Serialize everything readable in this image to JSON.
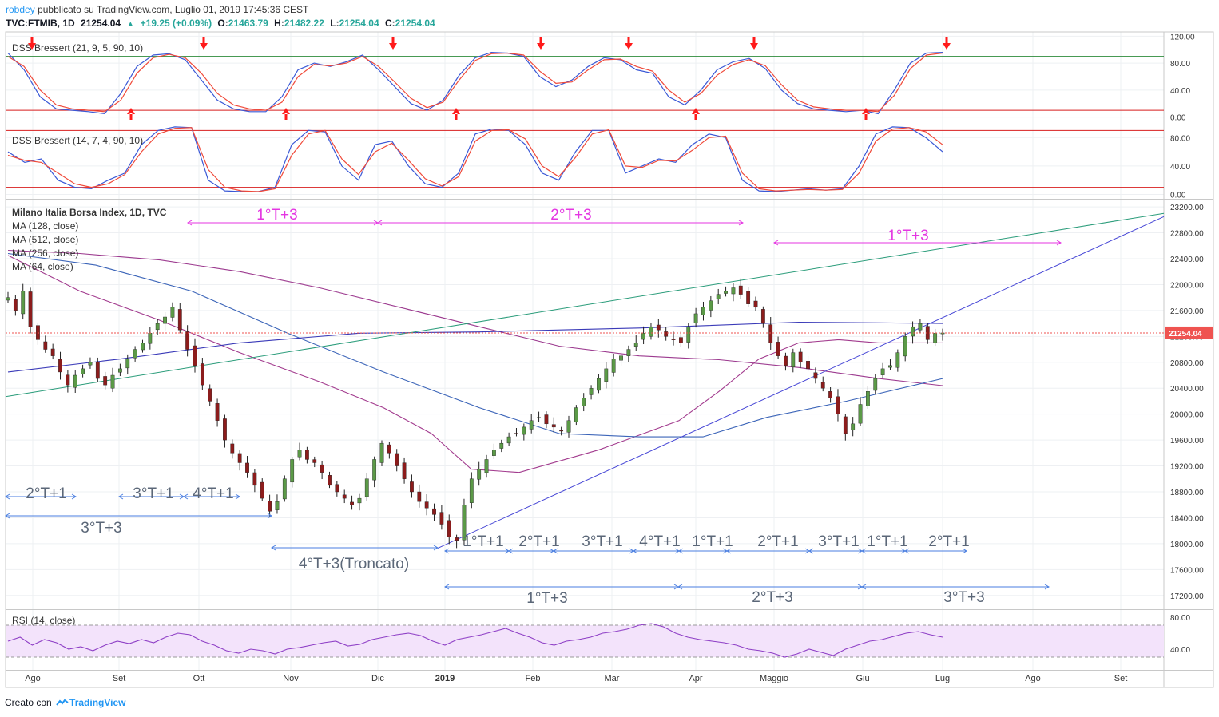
{
  "header": {
    "author": "robdey",
    "published": "pubblicato su TradingView.com, Luglio 01, 2019 17:45:36 CEST",
    "symbol": "TVC:FTMIB, 1D",
    "last": "21254.04",
    "change": "+19.25 (+0.09%)",
    "open_label": "O:",
    "open": "21463.79",
    "high_label": "H:",
    "high": "21482.22",
    "low_label": "L:",
    "low": "21254.04",
    "close_label": "C:",
    "close": "21254.04"
  },
  "footer": {
    "created_with": "Creato con",
    "brand": "TradingView",
    "logo_icon": "tradingview-logo-icon"
  },
  "colors": {
    "up": "#26a69a",
    "down": "#ef5350",
    "candle_up": "#5b9a47",
    "candle_down": "#8c1c1c",
    "dss_blue": "#3a58d6",
    "dss_red": "#f04a3a",
    "band_green": "#2e8b3c",
    "band_red": "#d81e1e",
    "annotation_magenta": "#e436e2",
    "annotation_blue": "#4a7ee0",
    "annotation_text": "#5b6778",
    "rsi_line": "#8e3fc6",
    "rsi_band": "#f3e3fb"
  },
  "chart_data": [
    {
      "type": "line",
      "title": "DSS Bressert (21, 9, 5, 90, 10)",
      "yticks": [
        "120.00",
        "80.00",
        "40.00",
        "0.00"
      ],
      "ylim": [
        -10,
        124
      ],
      "levels": [
        90,
        10
      ],
      "series": [
        {
          "name": "DSS",
          "values": [
            95,
            70,
            30,
            12,
            10,
            8,
            5,
            35,
            75,
            92,
            94,
            85,
            55,
            25,
            12,
            8,
            8,
            30,
            70,
            80,
            75,
            82,
            92,
            70,
            45,
            20,
            10,
            25,
            62,
            88,
            96,
            95,
            90,
            60,
            45,
            55,
            75,
            88,
            85,
            70,
            65,
            30,
            18,
            40,
            70,
            82,
            87,
            72,
            40,
            20,
            12,
            10,
            8,
            10,
            5,
            40,
            80,
            95,
            96
          ]
        },
        {
          "name": "Signal",
          "values": [
            90,
            75,
            40,
            18,
            12,
            10,
            8,
            25,
            65,
            88,
            93,
            88,
            65,
            35,
            18,
            12,
            10,
            22,
            60,
            78,
            76,
            80,
            90,
            75,
            52,
            28,
            14,
            22,
            55,
            84,
            94,
            95,
            92,
            68,
            50,
            52,
            70,
            85,
            86,
            75,
            68,
            40,
            22,
            35,
            62,
            78,
            85,
            76,
            48,
            25,
            15,
            12,
            10,
            10,
            8,
            32,
            72,
            92,
            95
          ]
        }
      ],
      "arrows_down": [
        "Ago",
        "Ott",
        "Dic",
        "Feb",
        "Mar",
        "Apr",
        "Lug"
      ],
      "arrows_up": [
        "Set",
        "Nov",
        "Gen",
        "Apr",
        "Giu"
      ]
    },
    {
      "type": "line",
      "title": "DSS Bressert (14, 7, 4, 90, 10)",
      "yticks": [
        "80.00",
        "40.00",
        "0.00"
      ],
      "ylim": [
        -5,
        96
      ],
      "levels": [
        90,
        10
      ],
      "series": [
        {
          "name": "DSS",
          "values": [
            60,
            45,
            50,
            20,
            10,
            8,
            20,
            30,
            70,
            90,
            95,
            94,
            20,
            5,
            4,
            4,
            10,
            70,
            90,
            88,
            40,
            20,
            70,
            75,
            40,
            15,
            10,
            30,
            85,
            92,
            90,
            70,
            30,
            20,
            60,
            90,
            90,
            30,
            40,
            50,
            45,
            70,
            85,
            80,
            20,
            5,
            4,
            6,
            8,
            6,
            8,
            40,
            85,
            95,
            94,
            80,
            60
          ]
        },
        {
          "name": "Signal",
          "values": [
            55,
            48,
            45,
            30,
            15,
            10,
            15,
            28,
            60,
            85,
            93,
            94,
            35,
            10,
            5,
            4,
            8,
            55,
            85,
            90,
            50,
            28,
            60,
            72,
            48,
            22,
            12,
            25,
            75,
            90,
            91,
            78,
            40,
            25,
            52,
            85,
            91,
            40,
            38,
            48,
            47,
            62,
            80,
            82,
            30,
            8,
            5,
            6,
            7,
            6,
            7,
            30,
            75,
            92,
            94,
            88,
            70
          ]
        }
      ]
    },
    {
      "type": "candlestick",
      "title": "Milano Italia Borsa Index, 1D, TVC",
      "indicators": [
        "MA (128, close)",
        "MA (512, close)",
        "MA (256, close)",
        "MA (64, close)"
      ],
      "x_labels": [
        "Ago",
        "Set",
        "Ott",
        "Nov",
        "Dic",
        "2019",
        "Feb",
        "Mar",
        "Apr",
        "Maggio",
        "Giu",
        "Lug",
        "Ago",
        "Set"
      ],
      "yticks": [
        "23200.00",
        "22800.00",
        "22400.00",
        "22000.00",
        "21600.00",
        "21200.00",
        "20800.00",
        "20400.00",
        "20000.00",
        "19600.00",
        "19200.00",
        "18800.00",
        "18400.00",
        "18000.00",
        "17600.00",
        "17200.00"
      ],
      "ylim": [
        17000,
        23300
      ],
      "last_price_label": "21254.04",
      "closes": [
        21800,
        21600,
        21900,
        21350,
        21150,
        21000,
        20900,
        20650,
        20450,
        20600,
        20700,
        20800,
        20550,
        20450,
        20600,
        20700,
        20850,
        21000,
        21100,
        21250,
        21400,
        21500,
        21650,
        21300,
        21000,
        20750,
        20450,
        20200,
        19900,
        19600,
        19400,
        19250,
        19100,
        18900,
        18700,
        18500,
        18650,
        19000,
        19300,
        19450,
        19300,
        19250,
        19100,
        18900,
        18800,
        18700,
        18600,
        18700,
        19000,
        19300,
        19550,
        19400,
        19200,
        19000,
        18800,
        18650,
        18550,
        18450,
        18300,
        18100,
        18050,
        18600,
        19000,
        19150,
        19300,
        19450,
        19550,
        19650,
        19700,
        19800,
        19900,
        19950,
        19850,
        19800,
        19750,
        19900,
        20100,
        20250,
        20400,
        20550,
        20700,
        20850,
        20900,
        21000,
        21100,
        21250,
        21350,
        21300,
        21200,
        21150,
        21100,
        21350,
        21550,
        21650,
        21750,
        21850,
        21900,
        21950,
        21850,
        21700,
        21650,
        21400,
        21100,
        20900,
        20750,
        20950,
        20800,
        20700,
        20550,
        20400,
        20250,
        20000,
        19700,
        19850,
        20150,
        20350,
        20550,
        20700,
        20750,
        20950,
        21200,
        21350,
        21400,
        21150,
        21250,
        21254
      ]
    },
    {
      "type": "line",
      "title": "RSI (14, close)",
      "yticks": [
        "80.00",
        "40.00"
      ],
      "ylim": [
        15,
        88
      ],
      "band": [
        30,
        70
      ],
      "values": [
        50,
        55,
        45,
        52,
        48,
        40,
        43,
        38,
        45,
        50,
        47,
        52,
        48,
        55,
        60,
        58,
        50,
        45,
        38,
        35,
        40,
        38,
        34,
        40,
        42,
        45,
        48,
        50,
        44,
        46,
        52,
        55,
        58,
        60,
        57,
        50,
        45,
        52,
        55,
        58,
        62,
        66,
        60,
        55,
        48,
        45,
        50,
        52,
        55,
        60,
        62,
        65,
        70,
        72,
        68,
        60,
        55,
        52,
        50,
        48,
        45,
        40,
        38,
        35,
        30,
        34,
        40,
        36,
        32,
        40,
        45,
        50,
        52,
        56,
        60,
        62,
        58,
        55
      ]
    }
  ],
  "annotations": [
    {
      "text": "1°T+3",
      "color": "magenta"
    },
    {
      "text": "2°T+3",
      "color": "magenta"
    },
    {
      "text": "1°T+3",
      "color": "magenta"
    },
    {
      "text": "2°T+1",
      "color": "gray"
    },
    {
      "text": "3°T+1",
      "color": "gray"
    },
    {
      "text": "4°T+1",
      "color": "gray"
    },
    {
      "text": "3°T+3",
      "color": "gray"
    },
    {
      "text": "4°T+3(Troncato)",
      "color": "gray"
    },
    {
      "text": "1°T+1",
      "color": "gray"
    },
    {
      "text": "2°T+1",
      "color": "gray"
    },
    {
      "text": "3°T+1",
      "color": "gray"
    },
    {
      "text": "4°T+1",
      "color": "gray"
    },
    {
      "text": "1°T+1",
      "color": "gray"
    },
    {
      "text": "2°T+1",
      "color": "gray"
    },
    {
      "text": "3°T+1",
      "color": "gray"
    },
    {
      "text": "1°T+1",
      "color": "gray"
    },
    {
      "text": "2°T+1",
      "color": "gray"
    },
    {
      "text": "1°T+3",
      "color": "gray"
    },
    {
      "text": "2°T+3",
      "color": "gray"
    },
    {
      "text": "3°T+3",
      "color": "gray"
    }
  ]
}
